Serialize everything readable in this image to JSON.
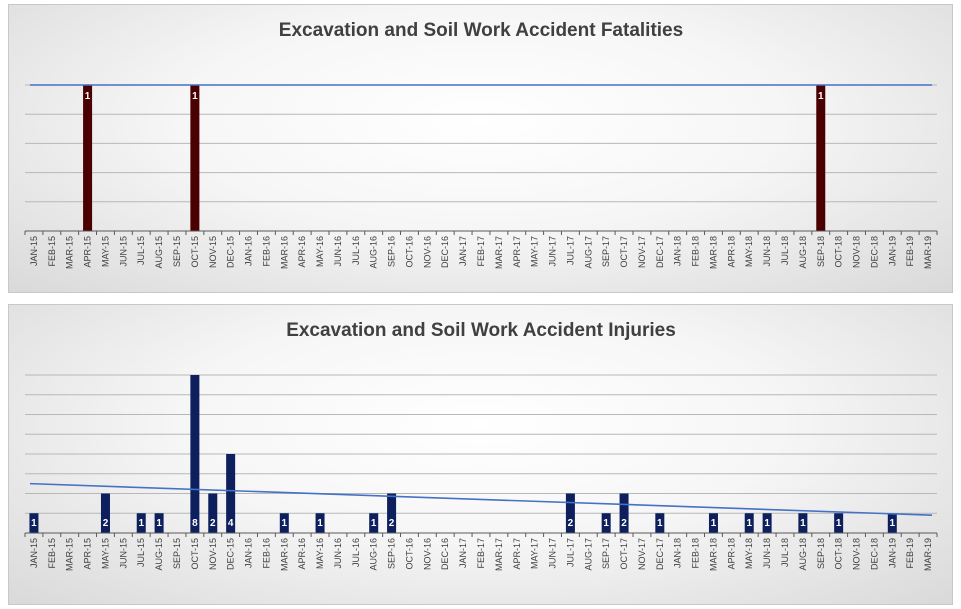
{
  "colors": {
    "fatality_bar": "#4a0000",
    "injury_bar": "#0d1f5c",
    "trendline": "#4472c4",
    "gridline": "#b8b8b8",
    "axis": "#595959"
  },
  "chart_data": [
    {
      "type": "bar",
      "title": "Excavation and Soil Work Accident Fatalities",
      "xlabel": "",
      "ylabel": "",
      "ylim": [
        0,
        1
      ],
      "grid": true,
      "categories": [
        "JAN-15",
        "FEB-15",
        "MAR-15",
        "APR-15",
        "MAY-15",
        "JUN-15",
        "JUL-15",
        "AUG-15",
        "SEP-15",
        "OCT-15",
        "NOV-15",
        "DEC-15",
        "JAN-16",
        "FEB-16",
        "MAR-16",
        "APR-16",
        "MAY-16",
        "JUN-16",
        "JUL-16",
        "AUG-16",
        "SEP-16",
        "OCT-16",
        "NOV-16",
        "DEC-16",
        "JAN-17",
        "FEB-17",
        "MAR-17",
        "APR-17",
        "MAY-17",
        "JUN-17",
        "JUL-17",
        "AUG-17",
        "SEP-17",
        "OCT-17",
        "NOV-17",
        "DEC-17",
        "JAN-18",
        "FEB-18",
        "MAR-18",
        "APR-18",
        "MAY-18",
        "JUN-18",
        "JUL-18",
        "AUG-18",
        "SEP-18",
        "OCT-18",
        "NOV-18",
        "DEC-18",
        "JAN-19",
        "FEB-19",
        "MAR-19"
      ],
      "values": [
        0,
        0,
        0,
        1,
        0,
        0,
        0,
        0,
        0,
        1,
        0,
        0,
        0,
        0,
        0,
        0,
        0,
        0,
        0,
        0,
        0,
        0,
        0,
        0,
        0,
        0,
        0,
        0,
        0,
        0,
        0,
        0,
        0,
        0,
        0,
        0,
        0,
        0,
        0,
        0,
        0,
        0,
        0,
        0,
        1,
        0,
        0,
        0,
        0,
        0,
        0
      ],
      "trendline": [
        1,
        1
      ]
    },
    {
      "type": "bar",
      "title": "Excavation and Soil Work Accident Injuries",
      "xlabel": "",
      "ylabel": "",
      "ylim": [
        0,
        8
      ],
      "grid": true,
      "categories": [
        "JAN-15",
        "FEB-15",
        "MAR-15",
        "APR-15",
        "MAY-15",
        "JUN-15",
        "JUL-15",
        "AUG-15",
        "SEP-15",
        "OCT-15",
        "NOV-15",
        "DEC-15",
        "JAN-16",
        "FEB-16",
        "MAR-16",
        "APR-16",
        "MAY-16",
        "JUN-16",
        "JUL-16",
        "AUG-16",
        "SEP-16",
        "OCT-16",
        "NOV-16",
        "DEC-16",
        "JAN-17",
        "FEB-17",
        "MAR-17",
        "APR-17",
        "MAY-17",
        "JUN-17",
        "JUL-17",
        "AUG-17",
        "SEP-17",
        "OCT-17",
        "NOV-17",
        "DEC-17",
        "JAN-18",
        "FEB-18",
        "MAR-18",
        "APR-18",
        "MAY-18",
        "JUN-18",
        "JUL-18",
        "AUG-18",
        "SEP-18",
        "OCT-18",
        "NOV-18",
        "DEC-18",
        "JAN-19",
        "FEB-19",
        "MAR-19"
      ],
      "values": [
        1,
        0,
        0,
        0,
        2,
        0,
        1,
        1,
        0,
        8,
        2,
        4,
        0,
        0,
        1,
        0,
        1,
        0,
        0,
        1,
        2,
        0,
        0,
        0,
        0,
        0,
        0,
        0,
        0,
        0,
        2,
        0,
        1,
        2,
        0,
        1,
        0,
        0,
        1,
        0,
        1,
        1,
        0,
        1,
        0,
        1,
        0,
        0,
        1,
        0,
        0
      ],
      "trendline": [
        2.5,
        0.9
      ]
    }
  ]
}
